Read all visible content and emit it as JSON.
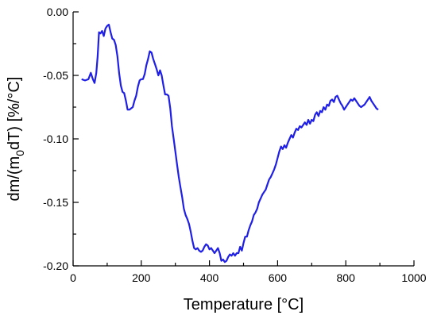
{
  "chart_data": {
    "type": "line",
    "title": "",
    "xlabel": "Temperature [°C]",
    "ylabel_parts": {
      "pre": "dm/(m",
      "sub": "0",
      "post": "dT) [%/°C]"
    },
    "xlim": [
      0,
      1000
    ],
    "ylim": [
      -0.2,
      0.0
    ],
    "x_ticks": [
      0,
      200,
      400,
      600,
      800,
      1000
    ],
    "x_tick_labels": [
      "0",
      "200",
      "400",
      "600",
      "800",
      "1000"
    ],
    "y_ticks": [
      0.0,
      -0.05,
      -0.1,
      -0.15,
      -0.2
    ],
    "y_tick_labels": [
      "0.00",
      "-0.05",
      "-0.10",
      "-0.15",
      "-0.20"
    ],
    "grid": false,
    "series": [
      {
        "color": "#1f1fe6",
        "x": [
          25,
          35,
          45,
          52,
          58,
          63,
          68,
          72,
          76,
          80,
          85,
          90,
          95,
          100,
          105,
          110,
          115,
          120,
          125,
          130,
          135,
          140,
          145,
          150,
          155,
          160,
          165,
          170,
          175,
          180,
          185,
          190,
          195,
          200,
          205,
          210,
          215,
          220,
          225,
          230,
          235,
          240,
          245,
          250,
          255,
          260,
          265,
          270,
          275,
          280,
          285,
          290,
          295,
          300,
          305,
          310,
          315,
          320,
          325,
          330,
          335,
          340,
          345,
          350,
          355,
          360,
          365,
          370,
          375,
          380,
          385,
          390,
          395,
          400,
          405,
          410,
          415,
          420,
          425,
          430,
          435,
          440,
          445,
          450,
          455,
          460,
          465,
          470,
          475,
          480,
          485,
          490,
          495,
          500,
          505,
          510,
          515,
          520,
          525,
          530,
          535,
          540,
          545,
          550,
          555,
          560,
          565,
          570,
          575,
          580,
          585,
          590,
          595,
          600,
          605,
          610,
          615,
          620,
          625,
          630,
          635,
          640,
          645,
          650,
          655,
          660,
          665,
          670,
          675,
          680,
          685,
          690,
          695,
          700,
          705,
          710,
          715,
          720,
          725,
          730,
          735,
          740,
          745,
          750,
          755,
          760,
          765,
          770,
          775,
          780,
          785,
          790,
          795,
          800,
          805,
          810,
          815,
          820,
          825,
          830,
          835,
          840,
          845,
          850,
          855,
          860,
          865,
          870,
          875,
          880,
          885,
          890,
          895
        ],
        "y": [
          -0.053,
          -0.054,
          -0.053,
          -0.048,
          -0.053,
          -0.056,
          -0.048,
          -0.035,
          -0.016,
          -0.017,
          -0.015,
          -0.019,
          -0.013,
          -0.011,
          -0.01,
          -0.016,
          -0.021,
          -0.022,
          -0.026,
          -0.035,
          -0.048,
          -0.058,
          -0.063,
          -0.064,
          -0.07,
          -0.077,
          -0.077,
          -0.076,
          -0.075,
          -0.07,
          -0.066,
          -0.059,
          -0.054,
          -0.053,
          -0.053,
          -0.049,
          -0.042,
          -0.037,
          -0.031,
          -0.032,
          -0.037,
          -0.041,
          -0.045,
          -0.05,
          -0.046,
          -0.05,
          -0.058,
          -0.065,
          -0.065,
          -0.066,
          -0.076,
          -0.09,
          -0.1,
          -0.11,
          -0.12,
          -0.13,
          -0.138,
          -0.146,
          -0.155,
          -0.16,
          -0.163,
          -0.167,
          -0.173,
          -0.18,
          -0.186,
          -0.187,
          -0.186,
          -0.188,
          -0.189,
          -0.188,
          -0.185,
          -0.183,
          -0.184,
          -0.187,
          -0.186,
          -0.188,
          -0.19,
          -0.188,
          -0.186,
          -0.19,
          -0.196,
          -0.195,
          -0.197,
          -0.196,
          -0.193,
          -0.191,
          -0.192,
          -0.19,
          -0.192,
          -0.19,
          -0.19,
          -0.185,
          -0.188,
          -0.182,
          -0.177,
          -0.177,
          -0.172,
          -0.168,
          -0.165,
          -0.16,
          -0.158,
          -0.155,
          -0.15,
          -0.147,
          -0.144,
          -0.142,
          -0.14,
          -0.136,
          -0.132,
          -0.13,
          -0.127,
          -0.124,
          -0.12,
          -0.115,
          -0.11,
          -0.106,
          -0.108,
          -0.105,
          -0.107,
          -0.103,
          -0.1,
          -0.097,
          -0.099,
          -0.095,
          -0.092,
          -0.093,
          -0.09,
          -0.091,
          -0.089,
          -0.087,
          -0.089,
          -0.085,
          -0.088,
          -0.085,
          -0.086,
          -0.081,
          -0.079,
          -0.082,
          -0.078,
          -0.079,
          -0.075,
          -0.077,
          -0.073,
          -0.074,
          -0.07,
          -0.069,
          -0.071,
          -0.067,
          -0.066,
          -0.069,
          -0.072,
          -0.074,
          -0.077,
          -0.075,
          -0.073,
          -0.071,
          -0.069,
          -0.07,
          -0.068,
          -0.07,
          -0.072,
          -0.074,
          -0.075,
          -0.074,
          -0.073,
          -0.071,
          -0.069,
          -0.067,
          -0.07,
          -0.072,
          -0.074,
          -0.076,
          -0.077
        ]
      }
    ]
  }
}
